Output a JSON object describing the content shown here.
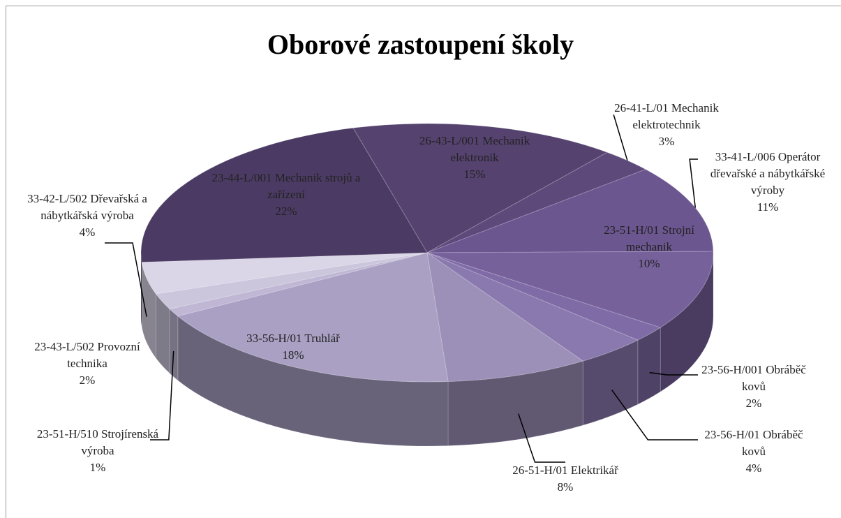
{
  "chart_data": {
    "type": "pie",
    "title": "Oborové zastoupení školy",
    "categories": [
      "26-43-L/001 Mechanik elektronik",
      "26-41-L/01 Mechanik elektrotechnik",
      "33-41-L/006 Operátor dřevařské a nábytkářské výroby",
      "23-51-H/01 Strojní mechanik",
      "23-56-H/001 Obráběč kovů",
      "23-56-H/01 Obráběč kovů",
      "26-51-H/01 Elektrikář",
      "33-56-H/01 Truhlář",
      "23-51-H/510 Strojírenská výroba",
      "23-43-L/502 Provozní technika",
      "33-42-L/502 Dřevařská a nábytkářská výroba",
      "23-44-L/001 Mechanik strojů a zařízení"
    ],
    "values": [
      15,
      3,
      11,
      10,
      2,
      4,
      8,
      18,
      1,
      2,
      4,
      22
    ],
    "value_labels": [
      "15%",
      "3%",
      "11%",
      "10%",
      "2%",
      "4%",
      "8%",
      "18%",
      "1%",
      "2%",
      "4%",
      "22%"
    ],
    "colors": [
      "#55426f",
      "#5d4a7b",
      "#6b5690",
      "#76619b",
      "#7f6ba6",
      "#8a79ae",
      "#9c90b8",
      "#aaa0c4",
      "#bfb7d4",
      "#ccc6dd",
      "#dad5e7",
      "#4b3b64"
    ]
  }
}
